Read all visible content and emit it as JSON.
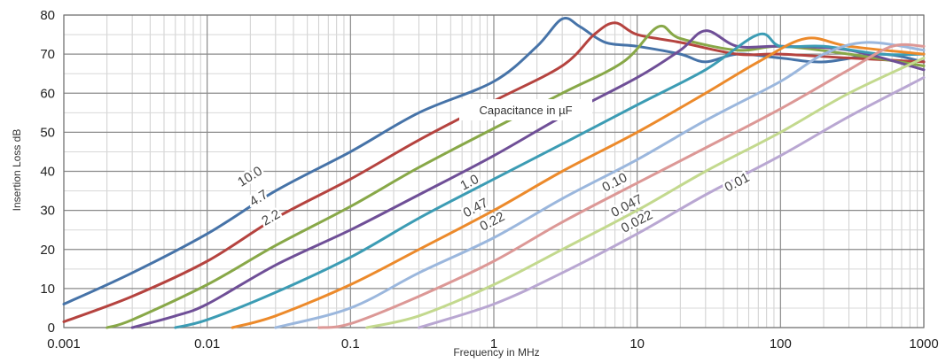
{
  "chart_data": {
    "type": "line",
    "xlabel": "Frequency in MHz",
    "ylabel": "Insertion Loss dB",
    "xscale": "log",
    "xlim": [
      0.001,
      1000
    ],
    "ylim": [
      0,
      80
    ],
    "xticks": [
      0.001,
      0.01,
      0.1,
      1,
      10,
      100,
      1000
    ],
    "xtick_labels": [
      "0.001",
      "0.01",
      "0.1",
      "1",
      "10",
      "100",
      "1000"
    ],
    "yticks": [
      0,
      10,
      20,
      30,
      40,
      50,
      60,
      70,
      80
    ],
    "grid": true,
    "annotation": "Capacitance in µF",
    "series": [
      {
        "name": "10.0",
        "label_text": "10.0",
        "color": "#4673a8",
        "points": [
          [
            0.001,
            6
          ],
          [
            0.003,
            14
          ],
          [
            0.01,
            24
          ],
          [
            0.03,
            35
          ],
          [
            0.1,
            45
          ],
          [
            0.3,
            55
          ],
          [
            1,
            63
          ],
          [
            2,
            72
          ],
          [
            3,
            79
          ],
          [
            4,
            77
          ],
          [
            6,
            73
          ],
          [
            10,
            72
          ],
          [
            20,
            70
          ],
          [
            30,
            68
          ],
          [
            50,
            70
          ],
          [
            100,
            69
          ],
          [
            200,
            68
          ],
          [
            500,
            70
          ],
          [
            1000,
            68
          ]
        ]
      },
      {
        "name": "4.7",
        "label_text": "4.7",
        "color": "#b5433f",
        "points": [
          [
            0.001,
            1.5
          ],
          [
            0.003,
            8
          ],
          [
            0.01,
            17
          ],
          [
            0.03,
            28
          ],
          [
            0.1,
            38
          ],
          [
            0.3,
            48
          ],
          [
            1,
            58
          ],
          [
            3,
            67
          ],
          [
            5,
            75
          ],
          [
            7,
            78
          ],
          [
            10,
            75
          ],
          [
            20,
            73
          ],
          [
            50,
            70
          ],
          [
            100,
            70
          ],
          [
            300,
            69
          ],
          [
            1000,
            68
          ]
        ]
      },
      {
        "name": "2.2",
        "label_text": "2.2",
        "color": "#88a848",
        "points": [
          [
            0.002,
            0
          ],
          [
            0.003,
            2
          ],
          [
            0.01,
            11
          ],
          [
            0.03,
            21
          ],
          [
            0.1,
            31
          ],
          [
            0.3,
            41
          ],
          [
            1,
            51
          ],
          [
            3,
            60
          ],
          [
            8,
            68
          ],
          [
            14,
            77
          ],
          [
            20,
            74
          ],
          [
            50,
            71
          ],
          [
            100,
            72
          ],
          [
            300,
            70
          ],
          [
            1000,
            67
          ]
        ]
      },
      {
        "name": "1.0",
        "label_text": "1.0",
        "color": "#6f4f97",
        "points": [
          [
            0.003,
            0
          ],
          [
            0.006,
            3
          ],
          [
            0.01,
            6
          ],
          [
            0.03,
            16
          ],
          [
            0.1,
            25
          ],
          [
            0.3,
            34
          ],
          [
            1,
            44
          ],
          [
            3,
            54
          ],
          [
            10,
            64
          ],
          [
            20,
            71
          ],
          [
            30,
            76
          ],
          [
            50,
            72
          ],
          [
            100,
            72
          ],
          [
            300,
            71
          ],
          [
            1000,
            66
          ]
        ]
      },
      {
        "name": "0.47",
        "label_text": "0.47",
        "color": "#3c9cb4",
        "points": [
          [
            0.006,
            0
          ],
          [
            0.01,
            2
          ],
          [
            0.03,
            9
          ],
          [
            0.1,
            18
          ],
          [
            0.3,
            28
          ],
          [
            1,
            38
          ],
          [
            3,
            47
          ],
          [
            10,
            57
          ],
          [
            30,
            66
          ],
          [
            70,
            75
          ],
          [
            100,
            72
          ],
          [
            200,
            72
          ],
          [
            500,
            70
          ],
          [
            1000,
            70
          ]
        ]
      },
      {
        "name": "0.22",
        "label_text": "0.22",
        "color": "#ec8a2b",
        "points": [
          [
            0.015,
            0
          ],
          [
            0.03,
            3
          ],
          [
            0.1,
            11
          ],
          [
            0.3,
            20
          ],
          [
            1,
            30
          ],
          [
            3,
            40
          ],
          [
            10,
            50
          ],
          [
            30,
            60
          ],
          [
            70,
            68
          ],
          [
            150,
            74
          ],
          [
            300,
            72
          ],
          [
            1000,
            70
          ]
        ]
      },
      {
        "name": "0.10",
        "label_text": "0.10",
        "color": "#9bb7dd",
        "points": [
          [
            0.03,
            0
          ],
          [
            0.1,
            5
          ],
          [
            0.3,
            14
          ],
          [
            1,
            23
          ],
          [
            3,
            33
          ],
          [
            10,
            43
          ],
          [
            30,
            53
          ],
          [
            100,
            63
          ],
          [
            200,
            70
          ],
          [
            400,
            73
          ],
          [
            1000,
            71
          ]
        ]
      },
      {
        "name": "0.047",
        "label_text": "0.047",
        "color": "#dc9896",
        "points": [
          [
            0.06,
            0
          ],
          [
            0.1,
            1
          ],
          [
            0.3,
            8
          ],
          [
            1,
            17
          ],
          [
            3,
            27
          ],
          [
            10,
            37
          ],
          [
            30,
            46
          ],
          [
            100,
            56
          ],
          [
            300,
            66
          ],
          [
            600,
            72
          ],
          [
            1000,
            72
          ]
        ]
      },
      {
        "name": "0.022",
        "label_text": "0.022",
        "color": "#c3d98e",
        "points": [
          [
            0.13,
            0
          ],
          [
            0.3,
            3
          ],
          [
            1,
            11
          ],
          [
            3,
            20
          ],
          [
            10,
            30
          ],
          [
            30,
            40
          ],
          [
            100,
            50
          ],
          [
            300,
            60
          ],
          [
            1000,
            69
          ]
        ]
      },
      {
        "name": "0.01",
        "label_text": "0.01",
        "color": "#b9a7d2",
        "points": [
          [
            0.3,
            0
          ],
          [
            1,
            6
          ],
          [
            3,
            14
          ],
          [
            10,
            24
          ],
          [
            30,
            34
          ],
          [
            100,
            44
          ],
          [
            300,
            54
          ],
          [
            1000,
            64
          ]
        ]
      }
    ],
    "label_positions": [
      {
        "series": "10.0",
        "x": 0.02,
        "y": 38.5
      },
      {
        "series": "4.7",
        "x": 0.023,
        "y": 33
      },
      {
        "series": "2.2",
        "x": 0.028,
        "y": 28
      },
      {
        "series": "1.0",
        "x": 0.68,
        "y": 37
      },
      {
        "series": "0.47",
        "x": 0.75,
        "y": 30.5
      },
      {
        "series": "0.22",
        "x": 0.98,
        "y": 27
      },
      {
        "series": "0.10",
        "x": 7,
        "y": 37
      },
      {
        "series": "0.047",
        "x": 8.5,
        "y": 31
      },
      {
        "series": "0.022",
        "x": 10,
        "y": 27
      },
      {
        "series": "0.01",
        "x": 50,
        "y": 37
      }
    ]
  }
}
